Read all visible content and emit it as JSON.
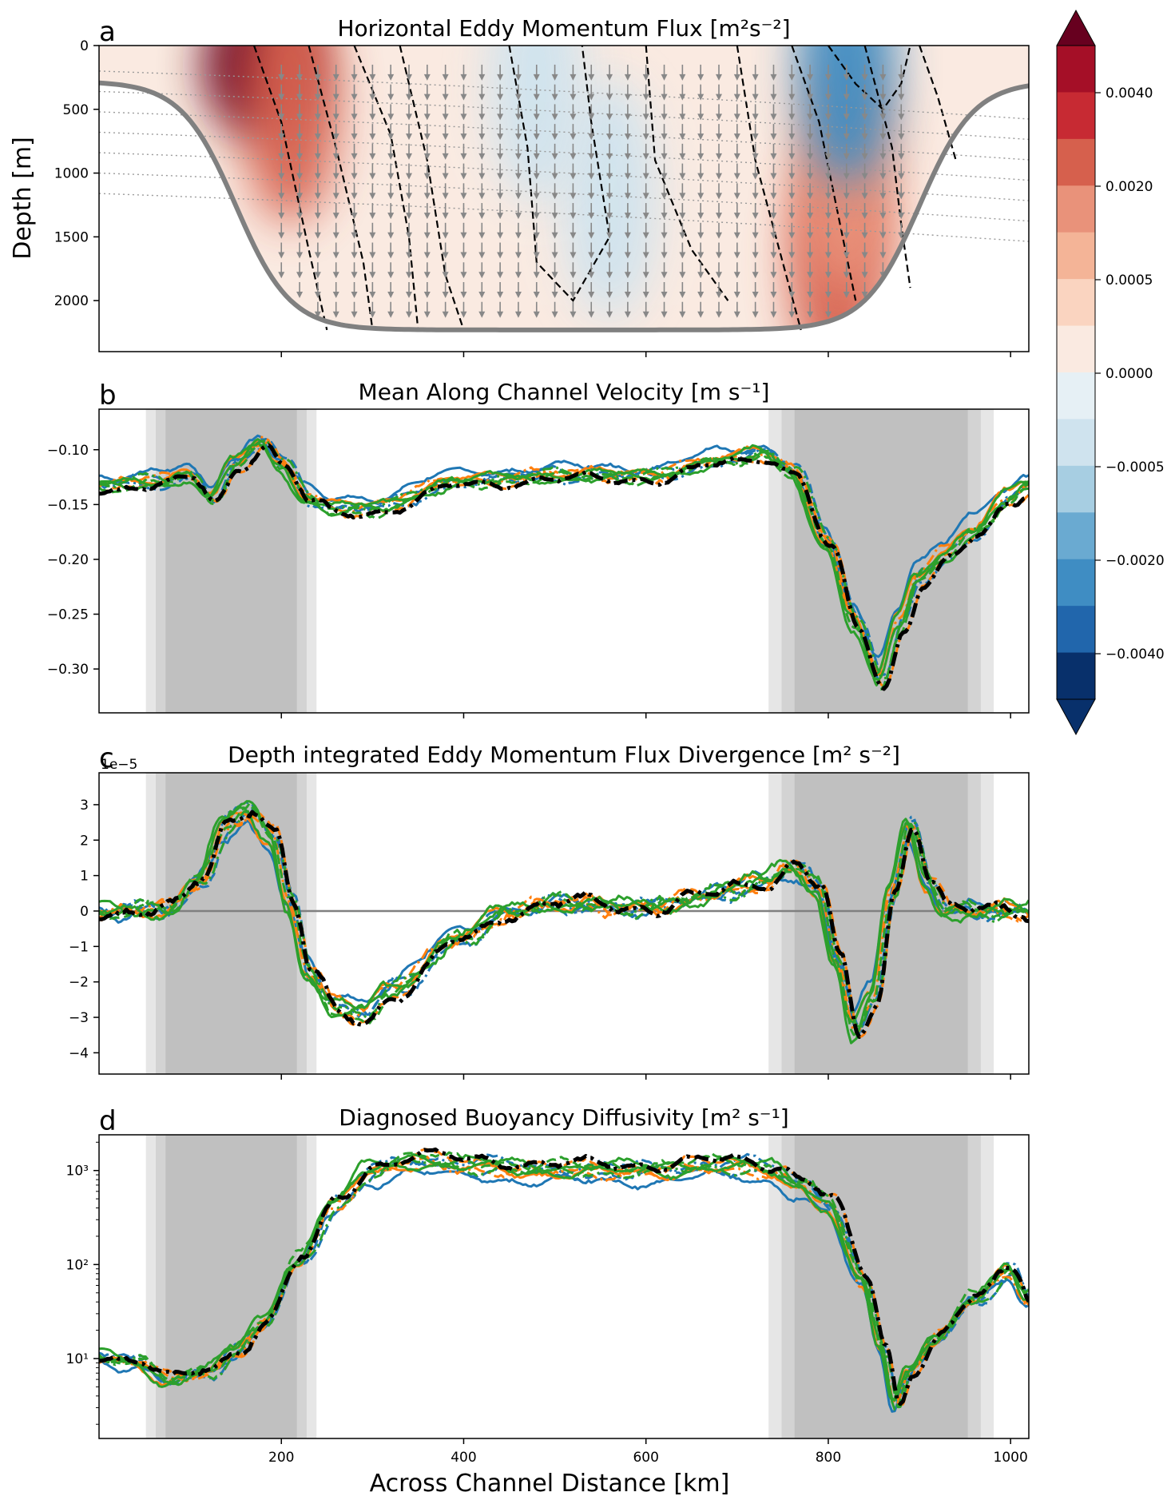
{
  "figure": {
    "xlabel": "Across Channel Distance [km]",
    "x_ticks": [
      "200",
      "400",
      "600",
      "800",
      "1000"
    ],
    "legend_colors": {
      "blue": "#1f77b4",
      "orange": "#ff7f0e",
      "green": "#2ca02c",
      "black": "#000000"
    }
  },
  "chart_data": [
    {
      "panel": "a",
      "type": "heatmap",
      "title": "Horizontal Eddy Momentum Flux [m²s⁻²]",
      "ylabel": "Depth [m]",
      "x_range": [
        0,
        1020
      ],
      "ylim": [
        2400,
        0
      ],
      "y_ticks": [
        "0",
        "500",
        "1000",
        "1500",
        "2000"
      ],
      "colorbar": {
        "ticks": [
          "0.0040",
          "0.0020",
          "0.0005",
          "0.0000",
          "−0.0005",
          "−0.0020",
          "−0.0040"
        ],
        "colors": [
          "#67001f",
          "#a50f27",
          "#c72a33",
          "#d6604d",
          "#e9927a",
          "#f4b497",
          "#fad4c0",
          "#faeae1",
          "#e6f0f5",
          "#cfe3ee",
          "#a7cee2",
          "#6aaad1",
          "#3f8dc3",
          "#2166ac",
          "#08306b"
        ]
      },
      "blobs": [
        {
          "x": 175,
          "depth": 150,
          "value": 0.0045
        },
        {
          "x": 210,
          "depth": 450,
          "value": 0.0012
        },
        {
          "x": 810,
          "depth": 1700,
          "value": 0.0015
        },
        {
          "x": 820,
          "depth": 1000,
          "value": 0.0006
        },
        {
          "x": 820,
          "depth": 150,
          "value": -0.0025
        },
        {
          "x": 560,
          "depth": 1200,
          "value": -0.0003
        },
        {
          "x": 480,
          "depth": 300,
          "value": -0.0004
        }
      ]
    },
    {
      "panel": "b",
      "type": "line",
      "title": "Mean Along Channel Velocity [m s⁻¹]",
      "ylim": [
        -0.34,
        -0.063
      ],
      "y_ticks": [
        "−0.10",
        "−0.15",
        "−0.20",
        "−0.25",
        "−0.30"
      ],
      "y_tick_values": [
        -0.1,
        -0.15,
        -0.2,
        -0.25,
        -0.3
      ],
      "ridge": {
        "left_center": 145,
        "right_center": 858
      },
      "anchors": {
        "x": [
          0,
          70,
          100,
          125,
          150,
          180,
          200,
          230,
          260,
          300,
          400,
          500,
          600,
          700,
          730,
          760,
          800,
          830,
          858,
          880,
          900,
          930,
          960,
          1000,
          1020
        ],
        "y": [
          -0.128,
          -0.125,
          -0.12,
          -0.14,
          -0.11,
          -0.09,
          -0.11,
          -0.14,
          -0.15,
          -0.148,
          -0.125,
          -0.12,
          -0.12,
          -0.105,
          -0.1,
          -0.115,
          -0.18,
          -0.25,
          -0.3,
          -0.25,
          -0.21,
          -0.19,
          -0.17,
          -0.14,
          -0.128
        ]
      }
    },
    {
      "panel": "c",
      "type": "line",
      "title": "Depth integrated Eddy Momentum Flux Divergence [m² s⁻²]",
      "offset_label": "1e−5",
      "ylim": [
        -4.6,
        3.9
      ],
      "y_ticks": [
        "3",
        "2",
        "1",
        "0",
        "−1",
        "−2",
        "−3",
        "−4"
      ],
      "y_tick_values": [
        3,
        2,
        1,
        0,
        -1,
        -2,
        -3,
        -4
      ],
      "anchors": {
        "x": [
          0,
          80,
          110,
          140,
          165,
          190,
          210,
          230,
          260,
          290,
          320,
          400,
          450,
          500,
          600,
          650,
          700,
          730,
          760,
          790,
          810,
          830,
          850,
          870,
          890,
          910,
          930,
          1020
        ],
        "y": [
          0,
          0.05,
          0.8,
          2.3,
          2.7,
          2.0,
          0.2,
          -1.6,
          -2.6,
          -2.7,
          -2.1,
          -0.7,
          0,
          0.2,
          0.1,
          0.3,
          0.6,
          0.8,
          1.2,
          0.6,
          -1.3,
          -3.2,
          -2.3,
          0.5,
          2.3,
          0.8,
          0,
          0
        ]
      }
    },
    {
      "panel": "d",
      "type": "line",
      "title": "Diagnosed Buoyancy Diffusivity [m² s⁻¹]",
      "yscale": "log",
      "ylim_log10": [
        0.15,
        3.38
      ],
      "y_ticks": [
        "10¹",
        "10²",
        "10³"
      ],
      "y_tick_values_log10": [
        1,
        2,
        3
      ],
      "anchors": {
        "x": [
          0,
          40,
          80,
          120,
          150,
          180,
          220,
          260,
          300,
          350,
          400,
          500,
          600,
          700,
          740,
          770,
          800,
          840,
          860,
          875,
          890,
          920,
          960,
          1000,
          1020
        ],
        "y_log10": [
          1.0,
          0.95,
          0.75,
          0.85,
          1.05,
          1.35,
          2.0,
          2.6,
          2.95,
          3.05,
          3.0,
          2.95,
          2.95,
          3.0,
          2.95,
          2.8,
          2.6,
          1.8,
          1.1,
          0.5,
          0.85,
          1.2,
          1.6,
          1.9,
          1.6
        ]
      }
    }
  ]
}
